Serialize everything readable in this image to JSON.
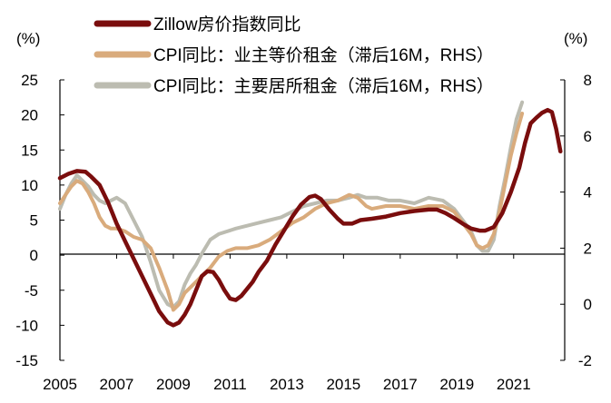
{
  "chart_data": {
    "type": "line",
    "left_unit": "(%)",
    "right_unit": "(%)",
    "x_range": [
      2005.0,
      2022.8
    ],
    "left_ylim": [
      -15,
      25
    ],
    "right_ylim": [
      -2,
      8
    ],
    "x_ticks": [
      {
        "value": 2005,
        "label": "2005"
      },
      {
        "value": 2007,
        "label": "2007"
      },
      {
        "value": 2009,
        "label": "2009"
      },
      {
        "value": 2011,
        "label": "2011"
      },
      {
        "value": 2013,
        "label": "2013"
      },
      {
        "value": 2015,
        "label": "2015"
      },
      {
        "value": 2017,
        "label": "2017"
      },
      {
        "value": 2019,
        "label": "2019"
      },
      {
        "value": 2021,
        "label": "2021"
      }
    ],
    "left_ticks": [
      25,
      20,
      15,
      10,
      5,
      0,
      -5,
      -10,
      -15
    ],
    "right_ticks": [
      8,
      6,
      4,
      2,
      0,
      -2
    ],
    "grid": false,
    "legend_position": "top-center",
    "series": [
      {
        "name": "Zillow房价指数同比",
        "axis": "left",
        "color": "#7a0d0d",
        "width": 4.5,
        "points": [
          [
            2005.0,
            11.0
          ],
          [
            2005.3,
            11.6
          ],
          [
            2005.6,
            12.0
          ],
          [
            2005.9,
            11.9
          ],
          [
            2006.1,
            11.2
          ],
          [
            2006.4,
            10.0
          ],
          [
            2006.7,
            7.5
          ],
          [
            2007.0,
            4.5
          ],
          [
            2007.3,
            2.0
          ],
          [
            2007.6,
            -0.5
          ],
          [
            2007.9,
            -3.0
          ],
          [
            2008.2,
            -5.5
          ],
          [
            2008.5,
            -8.0
          ],
          [
            2008.8,
            -9.6
          ],
          [
            2009.0,
            -10.0
          ],
          [
            2009.2,
            -9.6
          ],
          [
            2009.4,
            -8.5
          ],
          [
            2009.6,
            -7.0
          ],
          [
            2009.8,
            -5.0
          ],
          [
            2010.0,
            -3.0
          ],
          [
            2010.2,
            -2.3
          ],
          [
            2010.4,
            -2.4
          ],
          [
            2010.6,
            -3.5
          ],
          [
            2010.8,
            -5.0
          ],
          [
            2011.0,
            -6.2
          ],
          [
            2011.2,
            -6.4
          ],
          [
            2011.4,
            -5.8
          ],
          [
            2011.6,
            -4.8
          ],
          [
            2011.8,
            -3.8
          ],
          [
            2012.0,
            -2.4
          ],
          [
            2012.3,
            -0.8
          ],
          [
            2012.6,
            1.5
          ],
          [
            2012.9,
            3.5
          ],
          [
            2013.2,
            5.5
          ],
          [
            2013.5,
            7.2
          ],
          [
            2013.8,
            8.3
          ],
          [
            2014.0,
            8.5
          ],
          [
            2014.2,
            8.0
          ],
          [
            2014.5,
            6.5
          ],
          [
            2014.8,
            5.2
          ],
          [
            2015.0,
            4.5
          ],
          [
            2015.3,
            4.5
          ],
          [
            2015.6,
            5.0
          ],
          [
            2016.0,
            5.2
          ],
          [
            2016.5,
            5.5
          ],
          [
            2017.0,
            6.0
          ],
          [
            2017.5,
            6.3
          ],
          [
            2018.0,
            6.5
          ],
          [
            2018.3,
            6.5
          ],
          [
            2018.6,
            6.0
          ],
          [
            2018.9,
            5.3
          ],
          [
            2019.2,
            4.5
          ],
          [
            2019.5,
            3.8
          ],
          [
            2019.8,
            3.5
          ],
          [
            2020.0,
            3.5
          ],
          [
            2020.3,
            4.0
          ],
          [
            2020.6,
            6.0
          ],
          [
            2020.9,
            9.0
          ],
          [
            2021.2,
            12.5
          ],
          [
            2021.4,
            16.0
          ],
          [
            2021.6,
            18.8
          ],
          [
            2021.8,
            19.6
          ],
          [
            2022.0,
            20.3
          ],
          [
            2022.2,
            20.7
          ],
          [
            2022.35,
            20.4
          ],
          [
            2022.5,
            18.0
          ],
          [
            2022.65,
            14.8
          ]
        ]
      },
      {
        "name": "CPI同比：业主等价租金（滞后16M，RHS）",
        "axis": "right",
        "color": "#d9ab7c",
        "width": 4,
        "points": [
          [
            2005.0,
            3.6
          ],
          [
            2005.2,
            3.9
          ],
          [
            2005.4,
            4.2
          ],
          [
            2005.6,
            4.4
          ],
          [
            2005.8,
            4.3
          ],
          [
            2006.0,
            4.0
          ],
          [
            2006.2,
            3.6
          ],
          [
            2006.4,
            3.1
          ],
          [
            2006.6,
            2.8
          ],
          [
            2006.8,
            2.7
          ],
          [
            2007.0,
            2.7
          ],
          [
            2007.3,
            2.6
          ],
          [
            2007.6,
            2.4
          ],
          [
            2007.9,
            2.3
          ],
          [
            2008.2,
            2.0
          ],
          [
            2008.5,
            1.3
          ],
          [
            2008.8,
            0.5
          ],
          [
            2009.0,
            -0.2
          ],
          [
            2009.2,
            0.0
          ],
          [
            2009.4,
            0.4
          ],
          [
            2009.6,
            0.6
          ],
          [
            2009.8,
            0.8
          ],
          [
            2010.0,
            1.0
          ],
          [
            2010.3,
            1.3
          ],
          [
            2010.6,
            1.7
          ],
          [
            2010.9,
            1.9
          ],
          [
            2011.2,
            2.0
          ],
          [
            2011.6,
            2.0
          ],
          [
            2012.0,
            2.1
          ],
          [
            2012.4,
            2.3
          ],
          [
            2012.8,
            2.6
          ],
          [
            2013.2,
            2.9
          ],
          [
            2013.6,
            3.1
          ],
          [
            2014.0,
            3.4
          ],
          [
            2014.4,
            3.6
          ],
          [
            2014.8,
            3.7
          ],
          [
            2015.2,
            3.9
          ],
          [
            2015.5,
            3.8
          ],
          [
            2015.8,
            3.5
          ],
          [
            2016.0,
            3.4
          ],
          [
            2016.5,
            3.5
          ],
          [
            2017.0,
            3.5
          ],
          [
            2017.5,
            3.4
          ],
          [
            2018.0,
            3.5
          ],
          [
            2018.5,
            3.5
          ],
          [
            2018.9,
            3.3
          ],
          [
            2019.2,
            2.9
          ],
          [
            2019.5,
            2.5
          ],
          [
            2019.7,
            2.1
          ],
          [
            2019.9,
            2.0
          ],
          [
            2020.1,
            2.1
          ],
          [
            2020.3,
            2.5
          ],
          [
            2020.5,
            3.3
          ],
          [
            2020.7,
            4.3
          ],
          [
            2020.9,
            5.3
          ],
          [
            2021.1,
            6.1
          ],
          [
            2021.3,
            6.8
          ]
        ]
      },
      {
        "name": "CPI同比：主要居所租金（滞后16M，RHS）",
        "axis": "right",
        "color": "#bcbcb1",
        "width": 4,
        "points": [
          [
            2005.0,
            3.4
          ],
          [
            2005.2,
            3.9
          ],
          [
            2005.4,
            4.3
          ],
          [
            2005.6,
            4.6
          ],
          [
            2005.8,
            4.4
          ],
          [
            2006.0,
            4.2
          ],
          [
            2006.2,
            3.9
          ],
          [
            2006.4,
            3.7
          ],
          [
            2006.6,
            3.6
          ],
          [
            2006.8,
            3.7
          ],
          [
            2007.0,
            3.8
          ],
          [
            2007.3,
            3.6
          ],
          [
            2007.6,
            3.0
          ],
          [
            2007.9,
            2.4
          ],
          [
            2008.2,
            1.5
          ],
          [
            2008.5,
            0.5
          ],
          [
            2008.8,
            0.0
          ],
          [
            2009.0,
            -0.1
          ],
          [
            2009.2,
            0.1
          ],
          [
            2009.4,
            0.7
          ],
          [
            2009.6,
            1.1
          ],
          [
            2009.8,
            1.4
          ],
          [
            2010.0,
            1.8
          ],
          [
            2010.3,
            2.3
          ],
          [
            2010.6,
            2.5
          ],
          [
            2010.9,
            2.6
          ],
          [
            2011.2,
            2.7
          ],
          [
            2011.6,
            2.8
          ],
          [
            2012.0,
            2.9
          ],
          [
            2012.4,
            3.0
          ],
          [
            2012.8,
            3.1
          ],
          [
            2013.2,
            3.3
          ],
          [
            2013.6,
            3.5
          ],
          [
            2014.0,
            3.6
          ],
          [
            2014.4,
            3.7
          ],
          [
            2014.8,
            3.7
          ],
          [
            2015.2,
            3.8
          ],
          [
            2015.5,
            3.9
          ],
          [
            2015.8,
            3.8
          ],
          [
            2016.2,
            3.8
          ],
          [
            2016.6,
            3.7
          ],
          [
            2017.0,
            3.7
          ],
          [
            2017.5,
            3.6
          ],
          [
            2018.0,
            3.8
          ],
          [
            2018.5,
            3.7
          ],
          [
            2018.9,
            3.4
          ],
          [
            2019.2,
            3.0
          ],
          [
            2019.5,
            2.6
          ],
          [
            2019.7,
            2.1
          ],
          [
            2019.9,
            1.9
          ],
          [
            2020.1,
            1.9
          ],
          [
            2020.3,
            2.3
          ],
          [
            2020.5,
            3.5
          ],
          [
            2020.7,
            4.5
          ],
          [
            2020.9,
            5.6
          ],
          [
            2021.1,
            6.6
          ],
          [
            2021.3,
            7.2
          ]
        ]
      }
    ]
  }
}
